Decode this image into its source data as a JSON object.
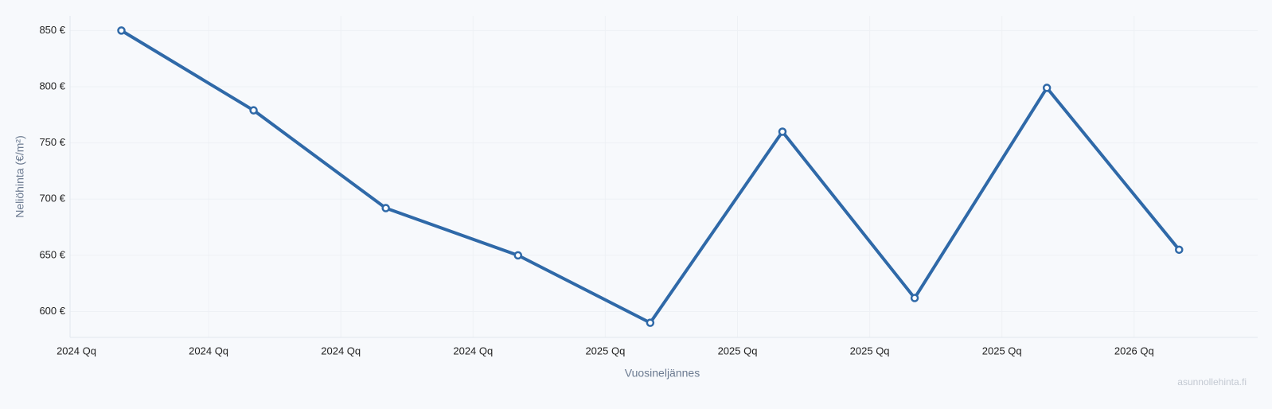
{
  "chart_data": {
    "type": "line",
    "y_label": "Neliöhinta (€/m²)",
    "x_label": "Vuosineljännes",
    "watermark": "asunnollehinta.fi",
    "categories": [
      "2024 Qq",
      "2024 Qq",
      "2024 Qq",
      "2024 Qq",
      "2025 Qq",
      "2025 Qq",
      "2025 Qq",
      "2025 Qq",
      "2026 Qq"
    ],
    "series": [
      {
        "color": "#2f69a8",
        "values": [
          850,
          779,
          692,
          650,
          590,
          760,
          612,
          799,
          655
        ]
      }
    ],
    "ylim": [
      577,
      863
    ],
    "yticks": [
      {
        "value": 600,
        "label": "600 €"
      },
      {
        "value": 650,
        "label": "650 €"
      },
      {
        "value": 700,
        "label": "700 €"
      },
      {
        "value": 750,
        "label": "750 €"
      },
      {
        "value": 800,
        "label": "800 €"
      },
      {
        "value": 850,
        "label": "850 €"
      }
    ],
    "grid": true
  }
}
